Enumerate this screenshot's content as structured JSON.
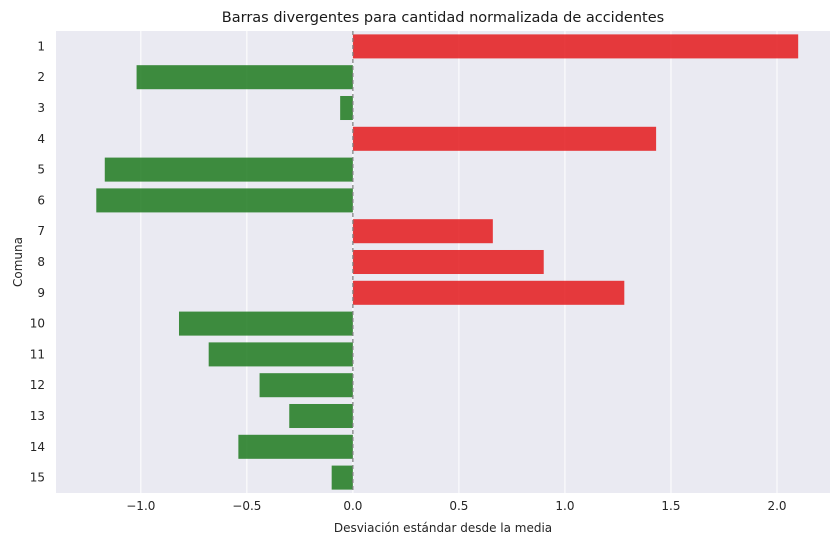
{
  "chart_data": {
    "type": "bar",
    "orientation": "horizontal",
    "title": "Barras divergentes para cantidad normalizada de accidentes",
    "xlabel": "Desviación estándar desde la media",
    "ylabel": "Comuna",
    "categories": [
      "1",
      "2",
      "3",
      "4",
      "5",
      "6",
      "7",
      "8",
      "9",
      "10",
      "11",
      "12",
      "13",
      "14",
      "15"
    ],
    "values": [
      2.1,
      -1.02,
      -0.06,
      1.43,
      -1.17,
      -1.21,
      0.66,
      0.9,
      1.28,
      -0.82,
      -0.68,
      -0.44,
      -0.3,
      -0.54,
      -0.1
    ],
    "xlim": [
      -1.4,
      2.25
    ],
    "xticks": [
      -1.0,
      -0.5,
      0.0,
      0.5,
      1.0,
      1.5,
      2.0
    ],
    "xtick_labels": [
      "−1.0",
      "−0.5",
      "0.0",
      "0.5",
      "1.0",
      "1.5",
      "2.0"
    ],
    "grid": true,
    "colors": {
      "positive": "#e41a1c",
      "negative": "#1f7a1f",
      "background": "#eaeaf2",
      "grid": "#ffffff",
      "zero_line": "#808080"
    }
  }
}
